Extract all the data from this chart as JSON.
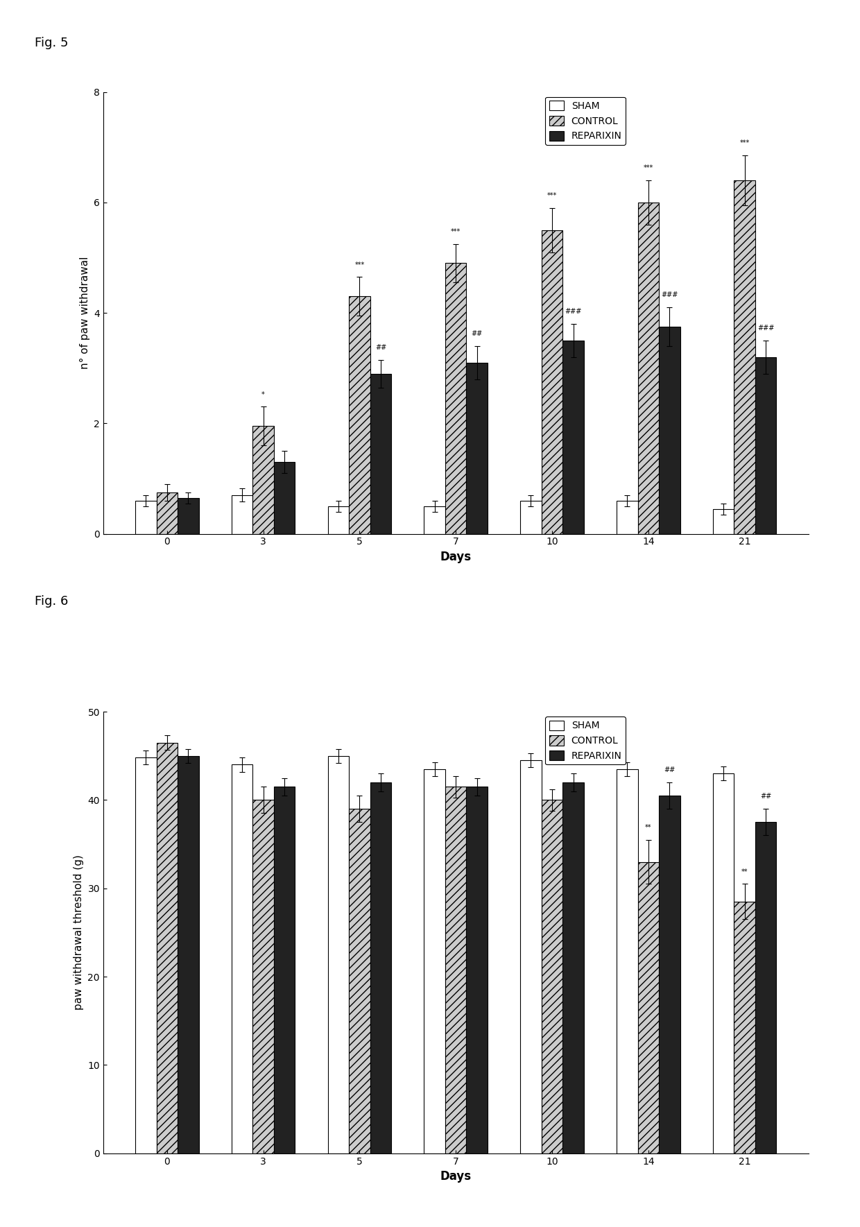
{
  "fig5": {
    "title": "Fig. 5",
    "ylabel": "n° of paw withdrawal",
    "xlabel": "Days",
    "days": [
      0,
      3,
      5,
      7,
      10,
      14,
      21
    ],
    "sham": [
      0.6,
      0.7,
      0.5,
      0.5,
      0.6,
      0.6,
      0.45
    ],
    "control": [
      0.75,
      1.95,
      4.3,
      4.9,
      5.5,
      6.0,
      6.4
    ],
    "reparixin": [
      0.65,
      1.3,
      2.9,
      3.1,
      3.5,
      3.75,
      3.2
    ],
    "sham_err": [
      0.1,
      0.12,
      0.1,
      0.1,
      0.1,
      0.1,
      0.1
    ],
    "control_err": [
      0.15,
      0.35,
      0.35,
      0.35,
      0.4,
      0.4,
      0.45
    ],
    "reparixin_err": [
      0.1,
      0.2,
      0.25,
      0.3,
      0.3,
      0.35,
      0.3
    ],
    "ylim": [
      0,
      8
    ],
    "yticks": [
      0,
      2,
      4,
      6,
      8
    ],
    "annotations_control": {
      "3": "*",
      "5": "***",
      "7": "***",
      "10": "***",
      "14": "***",
      "21": "***"
    },
    "annotations_reparixin": {
      "5": "##",
      "7": "##",
      "10": "###",
      "14": "###",
      "21": "###"
    }
  },
  "fig6": {
    "title": "Fig. 6",
    "ylabel": "paw withdrawal threshold (g)",
    "xlabel": "Days",
    "days": [
      0,
      3,
      5,
      7,
      10,
      14,
      21
    ],
    "sham": [
      44.8,
      44.0,
      45.0,
      43.5,
      44.5,
      43.5,
      43.0
    ],
    "control": [
      46.5,
      40.0,
      39.0,
      41.5,
      40.0,
      33.0,
      28.5
    ],
    "reparixin": [
      45.0,
      41.5,
      42.0,
      41.5,
      42.0,
      40.5,
      37.5
    ],
    "sham_err": [
      0.8,
      0.8,
      0.8,
      0.8,
      0.8,
      0.8,
      0.8
    ],
    "control_err": [
      0.8,
      1.5,
      1.5,
      1.2,
      1.2,
      2.5,
      2.0
    ],
    "reparixin_err": [
      0.8,
      1.0,
      1.0,
      1.0,
      1.0,
      1.5,
      1.5
    ],
    "ylim": [
      0,
      50
    ],
    "yticks": [
      0,
      10,
      20,
      30,
      40,
      50
    ],
    "annotations_control": {
      "14": "**",
      "21": "**"
    },
    "annotations_reparixin": {
      "14": "##",
      "21": "##"
    }
  },
  "colors": {
    "sham": "#ffffff",
    "control": "#aaaaaa",
    "reparixin": "#222222"
  },
  "legend_labels": [
    "SHAM",
    "CONTROL",
    "REPARIXIN"
  ],
  "bar_width": 0.22,
  "background_color": "#ffffff"
}
